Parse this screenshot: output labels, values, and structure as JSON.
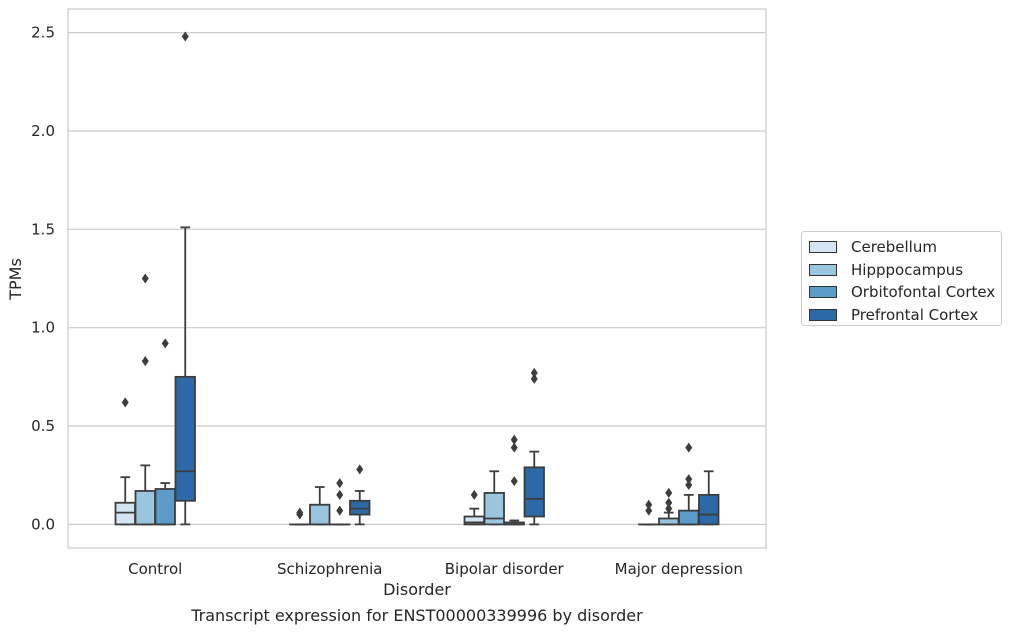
{
  "caption": "Transcript expression for ENST00000339996 by disorder",
  "chart_data": {
    "type": "box",
    "xlabel": "Disorder",
    "ylabel": "TPMs",
    "ylim": [
      -0.12,
      2.62
    ],
    "yticks": [
      "0.0",
      "0.5",
      "1.0",
      "1.5",
      "2.0",
      "2.5"
    ],
    "ytick_values": [
      0,
      0.5,
      1.0,
      1.5,
      2.0,
      2.5
    ],
    "grid": true,
    "legend_position": "right",
    "categories": [
      "Control",
      "Schizophrenia",
      "Bipolar disorder",
      "Major depression"
    ],
    "series": [
      {
        "name": "Cerebellum",
        "color": "#d4e4f2",
        "boxes": [
          {
            "min": 0,
            "q1": 0,
            "median": 0.06,
            "q3": 0.11,
            "max": 0.24,
            "outliers": [
              0.62
            ]
          },
          {
            "min": 0,
            "q1": 0,
            "median": 0,
            "q3": 0,
            "max": 0,
            "outliers": [
              0.05,
              0.06
            ]
          },
          {
            "min": 0,
            "q1": 0,
            "median": 0.01,
            "q3": 0.04,
            "max": 0.08,
            "outliers": [
              0.15
            ]
          },
          {
            "min": 0,
            "q1": 0,
            "median": 0,
            "q3": 0,
            "max": 0,
            "outliers": [
              0.07,
              0.1
            ]
          }
        ]
      },
      {
        "name": "Hipppocampus",
        "color": "#9ac5df",
        "boxes": [
          {
            "min": 0,
            "q1": 0,
            "median": 0,
            "q3": 0.17,
            "max": 0.3,
            "outliers": [
              0.83,
              1.25
            ]
          },
          {
            "min": 0,
            "q1": 0,
            "median": 0,
            "q3": 0.1,
            "max": 0.19,
            "outliers": []
          },
          {
            "min": 0,
            "q1": 0,
            "median": 0.03,
            "q3": 0.16,
            "max": 0.27,
            "outliers": []
          },
          {
            "min": 0,
            "q1": 0,
            "median": 0,
            "q3": 0.03,
            "max": 0.06,
            "outliers": [
              0.08,
              0.11,
              0.16
            ]
          }
        ]
      },
      {
        "name": "Orbitofontal Cortex",
        "color": "#5c9ccb",
        "boxes": [
          {
            "min": 0,
            "q1": 0,
            "median": 0,
            "q3": 0.18,
            "max": 0.21,
            "outliers": [
              0.92
            ]
          },
          {
            "min": 0,
            "q1": 0,
            "median": 0,
            "q3": 0,
            "max": 0,
            "outliers": [
              0.07,
              0.15,
              0.21
            ]
          },
          {
            "min": 0,
            "q1": 0,
            "median": 0,
            "q3": 0.01,
            "max": 0.02,
            "outliers": [
              0.22,
              0.39,
              0.43
            ]
          },
          {
            "min": 0,
            "q1": 0,
            "median": 0,
            "q3": 0.07,
            "max": 0.15,
            "outliers": [
              0.2,
              0.23,
              0.39
            ]
          }
        ]
      },
      {
        "name": "Prefrontal Cortex",
        "color": "#2c69a8",
        "boxes": [
          {
            "min": 0,
            "q1": 0.12,
            "median": 0.27,
            "q3": 0.75,
            "max": 1.51,
            "outliers": [
              2.48
            ]
          },
          {
            "min": 0,
            "q1": 0.05,
            "median": 0.08,
            "q3": 0.12,
            "max": 0.17,
            "outliers": [
              0.28
            ]
          },
          {
            "min": 0,
            "q1": 0.04,
            "median": 0.13,
            "q3": 0.29,
            "max": 0.37,
            "outliers": [
              0.74,
              0.77
            ]
          },
          {
            "min": 0,
            "q1": 0,
            "median": 0.05,
            "q3": 0.15,
            "max": 0.27,
            "outliers": []
          }
        ]
      }
    ]
  }
}
